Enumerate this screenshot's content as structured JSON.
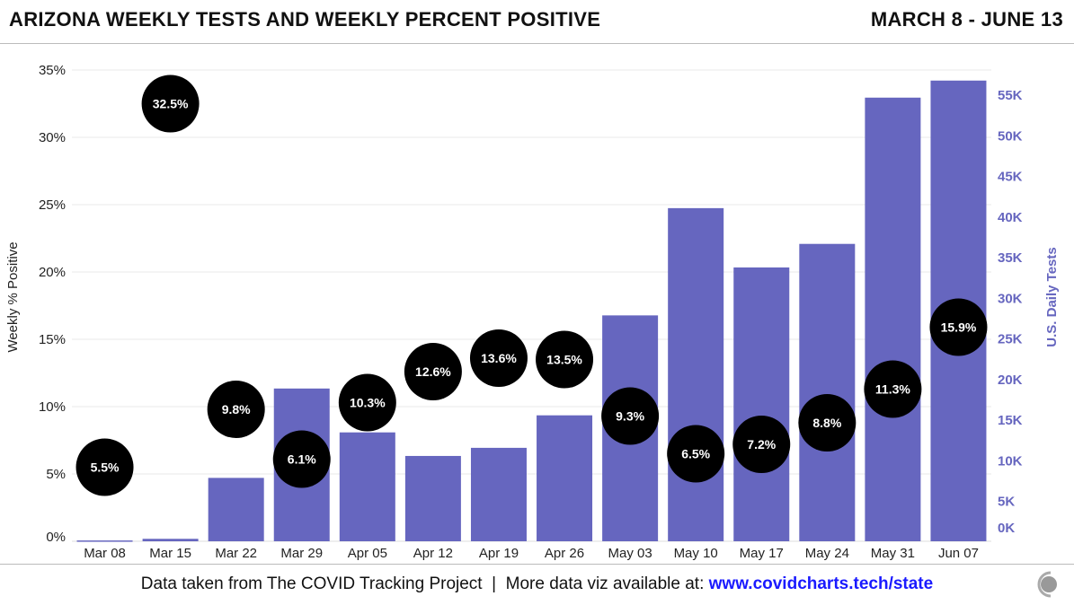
{
  "header": {
    "title": "ARIZONA WEEKLY TESTS AND WEEKLY PERCENT POSITIVE",
    "date_range": "MARCH 8 - JUNE 13"
  },
  "footer": {
    "source": "Data taken from The COVID Tracking Project",
    "separator": "|",
    "more": "More data viz available at:",
    "link": "www.covidcharts.tech/state"
  },
  "chart_data": {
    "type": "bar",
    "categories": [
      "Mar 08",
      "Mar 15",
      "Mar 22",
      "Mar 29",
      "Apr 05",
      "Apr 12",
      "Apr 19",
      "Apr 26",
      "May 03",
      "May 10",
      "May 17",
      "May 24",
      "May 31",
      "Jun 07"
    ],
    "series": [
      {
        "name": "U.S. Daily Tests",
        "type": "bar",
        "axis": "right",
        "color": "#6666bf",
        "values": [
          100,
          300,
          7800,
          18800,
          13400,
          10500,
          11500,
          15500,
          27800,
          41000,
          33700,
          36600,
          54600,
          56700
        ]
      },
      {
        "name": "Weekly % Positive",
        "type": "point-label",
        "axis": "left",
        "color": "#000000",
        "values": [
          5.5,
          32.5,
          9.8,
          6.1,
          10.3,
          12.6,
          13.6,
          13.5,
          9.3,
          6.5,
          7.2,
          8.8,
          11.3,
          15.9
        ],
        "labels": [
          "5.5%",
          "32.5%",
          "9.8%",
          "6.1%",
          "10.3%",
          "12.6%",
          "13.6%",
          "13.5%",
          "9.3%",
          "6.5%",
          "7.2%",
          "8.8%",
          "11.3%",
          "15.9%"
        ]
      }
    ],
    "ylabel": "Weekly % Positive",
    "y2label": "U.S. Daily Tests",
    "ylim": [
      0,
      35
    ],
    "y2lim": [
      0,
      58000
    ],
    "yticks": [
      "0%",
      "5%",
      "10%",
      "15%",
      "20%",
      "25%",
      "30%",
      "35%"
    ],
    "y2ticks": [
      "0K",
      "5K",
      "10K",
      "15K",
      "20K",
      "25K",
      "30K",
      "35K",
      "40K",
      "45K",
      "50K",
      "55K"
    ],
    "grid": true,
    "colors": {
      "bar": "#6666bf",
      "right_axis": "#6666bf",
      "marker": "#000000"
    }
  }
}
